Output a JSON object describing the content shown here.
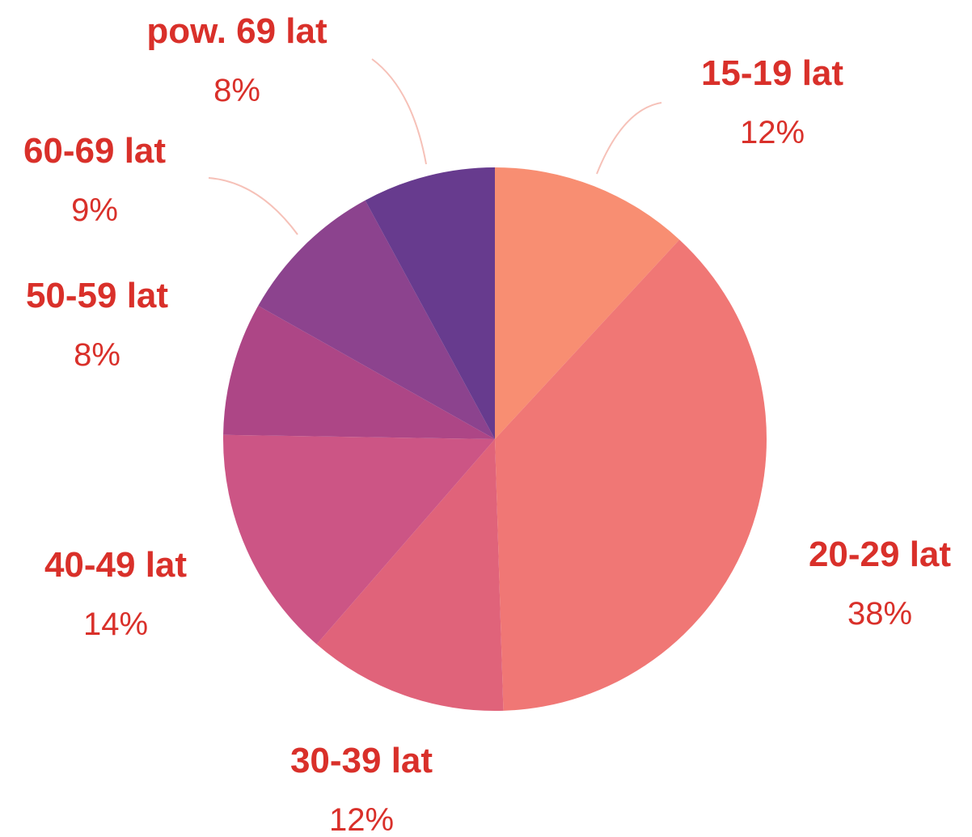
{
  "chart_data": {
    "type": "pie",
    "categories": [
      "15-19 lat",
      "20-29 lat",
      "30-39 lat",
      "40-49 lat",
      "50-59 lat",
      "60-69 lat",
      "pow. 69 lat"
    ],
    "values": [
      12,
      38,
      12,
      14,
      8,
      9,
      8
    ],
    "value_labels": [
      "12%",
      "38%",
      "12%",
      "14%",
      "8%",
      "9%",
      "8%"
    ],
    "colors": [
      "#f88e72",
      "#f07775",
      "#e0637a",
      "#cc5585",
      "#ad4686",
      "#8c438e",
      "#673b8e"
    ]
  }
}
